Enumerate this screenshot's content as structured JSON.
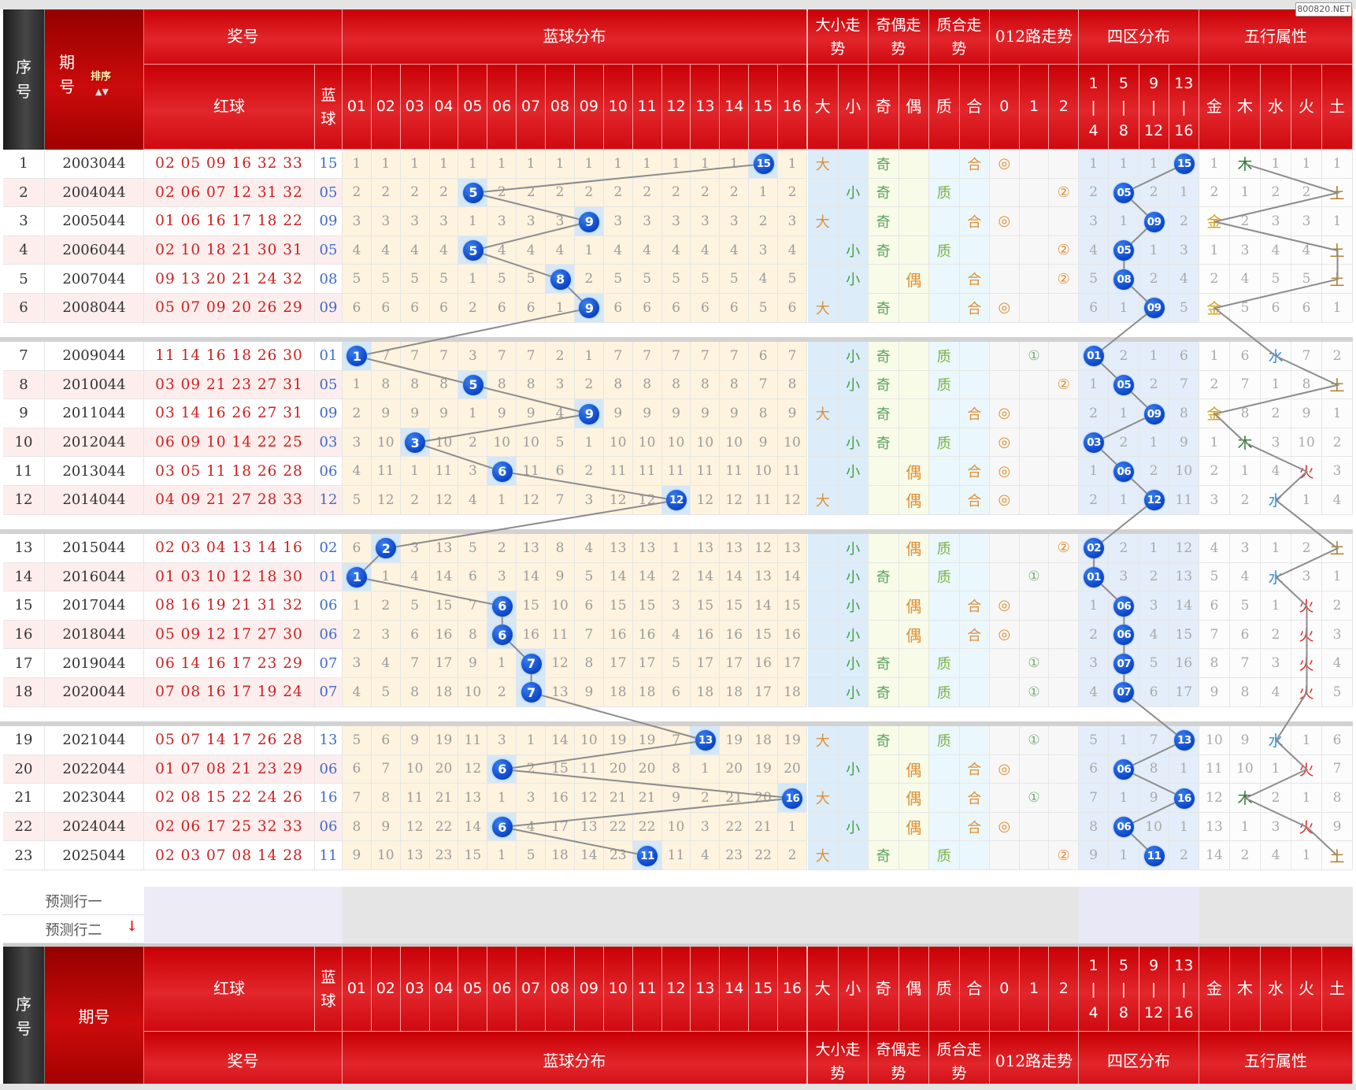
{
  "watermark": "800820.NET",
  "headers": {
    "seq": "序号",
    "period": "期号",
    "sort": "排序",
    "prize": "奖号",
    "red": "红球",
    "blue": "蓝球",
    "blue_dist": "蓝球分布",
    "big_small": "大小走势",
    "odd_even": "奇偶走势",
    "prime": "质合走势",
    "route": "012路走势",
    "zone": "四区分布",
    "wuxing": "五行属性",
    "blue_nums": [
      "01",
      "02",
      "03",
      "04",
      "05",
      "06",
      "07",
      "08",
      "09",
      "10",
      "11",
      "12",
      "13",
      "14",
      "15",
      "16"
    ],
    "bs_cols": [
      "大",
      "小"
    ],
    "oe_cols": [
      "奇",
      "偶"
    ],
    "pc_cols": [
      "质",
      "合"
    ],
    "route_cols": [
      "0",
      "1",
      "2"
    ],
    "zone_cols": [
      "1 | 4",
      "5 | 8",
      "9 | 12",
      "13 | 16"
    ],
    "wx_cols": [
      "金",
      "木",
      "水",
      "火",
      "土"
    ]
  },
  "rows": [
    {
      "seq": "1",
      "period": "2003044",
      "red": "02 05 09 16 32 33",
      "blue": "15",
      "miss": [
        "1",
        "1",
        "1",
        "1",
        "1",
        "1",
        "1",
        "1",
        "1",
        "1",
        "1",
        "1",
        "1",
        "1",
        "15",
        "1"
      ],
      "bs": [
        "大",
        ""
      ],
      "oe": [
        "奇",
        ""
      ],
      "pc": [
        "",
        "合"
      ],
      "route": [
        "◎",
        "",
        ""
      ],
      "zone": [
        "1",
        "1",
        "1",
        "15"
      ],
      "wx": [
        "1",
        "木",
        "1",
        "1",
        "1"
      ]
    },
    {
      "seq": "2",
      "period": "2004044",
      "red": "02 06 07 12 31 32",
      "blue": "05",
      "miss": [
        "2",
        "2",
        "2",
        "2",
        "5",
        "2",
        "2",
        "2",
        "2",
        "2",
        "2",
        "2",
        "2",
        "2",
        "1",
        "2"
      ],
      "bs": [
        "",
        "小"
      ],
      "oe": [
        "奇",
        ""
      ],
      "pc": [
        "质",
        ""
      ],
      "route": [
        "",
        "",
        "②"
      ],
      "zone": [
        "2",
        "05",
        "2",
        "1"
      ],
      "wx": [
        "2",
        "1",
        "2",
        "2",
        "土"
      ]
    },
    {
      "seq": "3",
      "period": "2005044",
      "red": "01 06 16 17 18 22",
      "blue": "09",
      "miss": [
        "3",
        "3",
        "3",
        "3",
        "1",
        "3",
        "3",
        "3",
        "9",
        "3",
        "3",
        "3",
        "3",
        "3",
        "2",
        "3"
      ],
      "bs": [
        "大",
        ""
      ],
      "oe": [
        "奇",
        ""
      ],
      "pc": [
        "",
        "合"
      ],
      "route": [
        "◎",
        "",
        ""
      ],
      "zone": [
        "3",
        "1",
        "09",
        "2"
      ],
      "wx": [
        "金",
        "2",
        "3",
        "3",
        "1"
      ]
    },
    {
      "seq": "4",
      "period": "2006044",
      "red": "02 10 18 21 30 31",
      "blue": "05",
      "miss": [
        "4",
        "4",
        "4",
        "4",
        "5",
        "4",
        "4",
        "4",
        "1",
        "4",
        "4",
        "4",
        "4",
        "4",
        "3",
        "4"
      ],
      "bs": [
        "",
        "小"
      ],
      "oe": [
        "奇",
        ""
      ],
      "pc": [
        "质",
        ""
      ],
      "route": [
        "",
        "",
        "②"
      ],
      "zone": [
        "4",
        "05",
        "1",
        "3"
      ],
      "wx": [
        "1",
        "3",
        "4",
        "4",
        "土"
      ]
    },
    {
      "seq": "5",
      "period": "2007044",
      "red": "09 13 20 21 24 32",
      "blue": "08",
      "miss": [
        "5",
        "5",
        "5",
        "5",
        "1",
        "5",
        "5",
        "8",
        "2",
        "5",
        "5",
        "5",
        "5",
        "5",
        "4",
        "5"
      ],
      "bs": [
        "",
        "小"
      ],
      "oe": [
        "",
        "偶"
      ],
      "pc": [
        "",
        "合"
      ],
      "route": [
        "",
        "",
        "②"
      ],
      "zone": [
        "5",
        "08",
        "2",
        "4"
      ],
      "wx": [
        "2",
        "4",
        "5",
        "5",
        "土"
      ]
    },
    {
      "seq": "6",
      "period": "2008044",
      "red": "05 07 09 20 26 29",
      "blue": "09",
      "miss": [
        "6",
        "6",
        "6",
        "6",
        "2",
        "6",
        "6",
        "1",
        "9",
        "6",
        "6",
        "6",
        "6",
        "6",
        "5",
        "6"
      ],
      "bs": [
        "大",
        ""
      ],
      "oe": [
        "奇",
        ""
      ],
      "pc": [
        "",
        "合"
      ],
      "route": [
        "◎",
        "",
        ""
      ],
      "zone": [
        "6",
        "1",
        "09",
        "5"
      ],
      "wx": [
        "金",
        "5",
        "6",
        "6",
        "1"
      ]
    },
    {
      "seq": "7",
      "period": "2009044",
      "red": "11 14 16 18 26 30",
      "blue": "01",
      "miss": [
        "1",
        "7",
        "7",
        "7",
        "3",
        "7",
        "7",
        "2",
        "1",
        "7",
        "7",
        "7",
        "7",
        "7",
        "6",
        "7"
      ],
      "bs": [
        "",
        "小"
      ],
      "oe": [
        "奇",
        ""
      ],
      "pc": [
        "质",
        ""
      ],
      "route": [
        "",
        "①",
        ""
      ],
      "zone": [
        "01",
        "2",
        "1",
        "6"
      ],
      "wx": [
        "1",
        "6",
        "水",
        "7",
        "2"
      ]
    },
    {
      "seq": "8",
      "period": "2010044",
      "red": "03 09 21 23 27 31",
      "blue": "05",
      "miss": [
        "1",
        "8",
        "8",
        "8",
        "5",
        "8",
        "8",
        "3",
        "2",
        "8",
        "8",
        "8",
        "8",
        "8",
        "7",
        "8"
      ],
      "bs": [
        "",
        "小"
      ],
      "oe": [
        "奇",
        ""
      ],
      "pc": [
        "质",
        ""
      ],
      "route": [
        "",
        "",
        "②"
      ],
      "zone": [
        "1",
        "05",
        "2",
        "7"
      ],
      "wx": [
        "2",
        "7",
        "1",
        "8",
        "土"
      ]
    },
    {
      "seq": "9",
      "period": "2011044",
      "red": "03 14 16 26 27 31",
      "blue": "09",
      "miss": [
        "2",
        "9",
        "9",
        "9",
        "1",
        "9",
        "9",
        "4",
        "9",
        "9",
        "9",
        "9",
        "9",
        "9",
        "8",
        "9"
      ],
      "bs": [
        "大",
        ""
      ],
      "oe": [
        "奇",
        ""
      ],
      "pc": [
        "",
        "合"
      ],
      "route": [
        "◎",
        "",
        ""
      ],
      "zone": [
        "2",
        "1",
        "09",
        "8"
      ],
      "wx": [
        "金",
        "8",
        "2",
        "9",
        "1"
      ]
    },
    {
      "seq": "10",
      "period": "2012044",
      "red": "06 09 10 14 22 25",
      "blue": "03",
      "miss": [
        "3",
        "10",
        "3",
        "10",
        "2",
        "10",
        "10",
        "5",
        "1",
        "10",
        "10",
        "10",
        "10",
        "10",
        "9",
        "10"
      ],
      "bs": [
        "",
        "小"
      ],
      "oe": [
        "奇",
        ""
      ],
      "pc": [
        "质",
        ""
      ],
      "route": [
        "◎",
        "",
        ""
      ],
      "zone": [
        "03",
        "2",
        "1",
        "9"
      ],
      "wx": [
        "1",
        "木",
        "3",
        "10",
        "2"
      ]
    },
    {
      "seq": "11",
      "period": "2013044",
      "red": "03 05 11 18 26 28",
      "blue": "06",
      "miss": [
        "4",
        "11",
        "1",
        "11",
        "3",
        "6",
        "11",
        "6",
        "2",
        "11",
        "11",
        "11",
        "11",
        "11",
        "10",
        "11"
      ],
      "bs": [
        "",
        "小"
      ],
      "oe": [
        "",
        "偶"
      ],
      "pc": [
        "",
        "合"
      ],
      "route": [
        "◎",
        "",
        ""
      ],
      "zone": [
        "1",
        "06",
        "2",
        "10"
      ],
      "wx": [
        "2",
        "1",
        "4",
        "火",
        "3"
      ]
    },
    {
      "seq": "12",
      "period": "2014044",
      "red": "04 09 21 27 28 33",
      "blue": "12",
      "miss": [
        "5",
        "12",
        "2",
        "12",
        "4",
        "1",
        "12",
        "7",
        "3",
        "12",
        "12",
        "12",
        "12",
        "12",
        "11",
        "12"
      ],
      "bs": [
        "大",
        ""
      ],
      "oe": [
        "",
        "偶"
      ],
      "pc": [
        "",
        "合"
      ],
      "route": [
        "◎",
        "",
        ""
      ],
      "zone": [
        "2",
        "1",
        "12",
        "11"
      ],
      "wx": [
        "3",
        "2",
        "水",
        "1",
        "4"
      ]
    },
    {
      "seq": "13",
      "period": "2015044",
      "red": "02 03 04 13 14 16",
      "blue": "02",
      "miss": [
        "6",
        "2",
        "3",
        "13",
        "5",
        "2",
        "13",
        "8",
        "4",
        "13",
        "13",
        "1",
        "13",
        "13",
        "12",
        "13"
      ],
      "bs": [
        "",
        "小"
      ],
      "oe": [
        "",
        "偶"
      ],
      "pc": [
        "质",
        ""
      ],
      "route": [
        "",
        "",
        "②"
      ],
      "zone": [
        "02",
        "2",
        "1",
        "12"
      ],
      "wx": [
        "4",
        "3",
        "1",
        "2",
        "土"
      ]
    },
    {
      "seq": "14",
      "period": "2016044",
      "red": "01 03 10 12 18 30",
      "blue": "01",
      "miss": [
        "1",
        "1",
        "4",
        "14",
        "6",
        "3",
        "14",
        "9",
        "5",
        "14",
        "14",
        "2",
        "14",
        "14",
        "13",
        "14"
      ],
      "bs": [
        "",
        "小"
      ],
      "oe": [
        "奇",
        ""
      ],
      "pc": [
        "质",
        ""
      ],
      "route": [
        "",
        "①",
        ""
      ],
      "zone": [
        "01",
        "3",
        "2",
        "13"
      ],
      "wx": [
        "5",
        "4",
        "水",
        "3",
        "1"
      ]
    },
    {
      "seq": "15",
      "period": "2017044",
      "red": "08 16 19 21 31 32",
      "blue": "06",
      "miss": [
        "1",
        "2",
        "5",
        "15",
        "7",
        "6",
        "15",
        "10",
        "6",
        "15",
        "15",
        "3",
        "15",
        "15",
        "14",
        "15"
      ],
      "bs": [
        "",
        "小"
      ],
      "oe": [
        "",
        "偶"
      ],
      "pc": [
        "",
        "合"
      ],
      "route": [
        "◎",
        "",
        ""
      ],
      "zone": [
        "1",
        "06",
        "3",
        "14"
      ],
      "wx": [
        "6",
        "5",
        "1",
        "火",
        "2"
      ]
    },
    {
      "seq": "16",
      "period": "2018044",
      "red": "05 09 12 17 27 30",
      "blue": "06",
      "miss": [
        "2",
        "3",
        "6",
        "16",
        "8",
        "6",
        "16",
        "11",
        "7",
        "16",
        "16",
        "4",
        "16",
        "16",
        "15",
        "16"
      ],
      "bs": [
        "",
        "小"
      ],
      "oe": [
        "",
        "偶"
      ],
      "pc": [
        "",
        "合"
      ],
      "route": [
        "◎",
        "",
        ""
      ],
      "zone": [
        "2",
        "06",
        "4",
        "15"
      ],
      "wx": [
        "7",
        "6",
        "2",
        "火",
        "3"
      ]
    },
    {
      "seq": "17",
      "period": "2019044",
      "red": "06 14 16 17 23 29",
      "blue": "07",
      "miss": [
        "3",
        "4",
        "7",
        "17",
        "9",
        "1",
        "7",
        "12",
        "8",
        "17",
        "17",
        "5",
        "17",
        "17",
        "16",
        "17"
      ],
      "bs": [
        "",
        "小"
      ],
      "oe": [
        "奇",
        ""
      ],
      "pc": [
        "质",
        ""
      ],
      "route": [
        "",
        "①",
        ""
      ],
      "zone": [
        "3",
        "07",
        "5",
        "16"
      ],
      "wx": [
        "8",
        "7",
        "3",
        "火",
        "4"
      ]
    },
    {
      "seq": "18",
      "period": "2020044",
      "red": "07 08 16 17 19 24",
      "blue": "07",
      "miss": [
        "4",
        "5",
        "8",
        "18",
        "10",
        "2",
        "7",
        "13",
        "9",
        "18",
        "18",
        "6",
        "18",
        "18",
        "17",
        "18"
      ],
      "bs": [
        "",
        "小"
      ],
      "oe": [
        "奇",
        ""
      ],
      "pc": [
        "质",
        ""
      ],
      "route": [
        "",
        "①",
        ""
      ],
      "zone": [
        "4",
        "07",
        "6",
        "17"
      ],
      "wx": [
        "9",
        "8",
        "4",
        "火",
        "5"
      ]
    },
    {
      "seq": "19",
      "period": "2021044",
      "red": "05 07 14 17 26 28",
      "blue": "13",
      "miss": [
        "5",
        "6",
        "9",
        "19",
        "11",
        "3",
        "1",
        "14",
        "10",
        "19",
        "19",
        "7",
        "13",
        "19",
        "18",
        "19"
      ],
      "bs": [
        "大",
        ""
      ],
      "oe": [
        "奇",
        ""
      ],
      "pc": [
        "质",
        ""
      ],
      "route": [
        "",
        "①",
        ""
      ],
      "zone": [
        "5",
        "1",
        "7",
        "13"
      ],
      "wx": [
        "10",
        "9",
        "水",
        "1",
        "6"
      ]
    },
    {
      "seq": "20",
      "period": "2022044",
      "red": "01 07 08 21 23 29",
      "blue": "06",
      "miss": [
        "6",
        "7",
        "10",
        "20",
        "12",
        "6",
        "2",
        "15",
        "11",
        "20",
        "20",
        "8",
        "1",
        "20",
        "19",
        "20"
      ],
      "bs": [
        "",
        "小"
      ],
      "oe": [
        "",
        "偶"
      ],
      "pc": [
        "",
        "合"
      ],
      "route": [
        "◎",
        "",
        ""
      ],
      "zone": [
        "6",
        "06",
        "8",
        "1"
      ],
      "wx": [
        "11",
        "10",
        "1",
        "火",
        "7"
      ]
    },
    {
      "seq": "21",
      "period": "2023044",
      "red": "02 08 15 22 24 26",
      "blue": "16",
      "miss": [
        "7",
        "8",
        "11",
        "21",
        "13",
        "1",
        "3",
        "16",
        "12",
        "21",
        "21",
        "9",
        "2",
        "21",
        "20",
        "16"
      ],
      "bs": [
        "大",
        ""
      ],
      "oe": [
        "",
        "偶"
      ],
      "pc": [
        "",
        "合"
      ],
      "route": [
        "",
        "①",
        ""
      ],
      "zone": [
        "7",
        "1",
        "9",
        "16"
      ],
      "wx": [
        "12",
        "木",
        "2",
        "1",
        "8"
      ]
    },
    {
      "seq": "22",
      "period": "2024044",
      "red": "02 06 17 25 32 33",
      "blue": "06",
      "miss": [
        "8",
        "9",
        "12",
        "22",
        "14",
        "6",
        "4",
        "17",
        "13",
        "22",
        "22",
        "10",
        "3",
        "22",
        "21",
        "1"
      ],
      "bs": [
        "",
        "小"
      ],
      "oe": [
        "",
        "偶"
      ],
      "pc": [
        "",
        "合"
      ],
      "route": [
        "◎",
        "",
        ""
      ],
      "zone": [
        "8",
        "06",
        "10",
        "1"
      ],
      "wx": [
        "13",
        "1",
        "3",
        "火",
        "9"
      ]
    },
    {
      "seq": "23",
      "period": "2025044",
      "red": "02 03 07 08 14 28",
      "blue": "11",
      "miss": [
        "9",
        "10",
        "13",
        "23",
        "15",
        "1",
        "5",
        "18",
        "14",
        "23",
        "11",
        "11",
        "4",
        "23",
        "22",
        "2"
      ],
      "bs": [
        "大",
        ""
      ],
      "oe": [
        "奇",
        ""
      ],
      "pc": [
        "质",
        ""
      ],
      "route": [
        "",
        "",
        "②"
      ],
      "zone": [
        "9",
        "1",
        "11",
        "2"
      ],
      "wx": [
        "14",
        "2",
        "4",
        "1",
        "土"
      ]
    }
  ],
  "predict": [
    "预测行一",
    "预测行二"
  ]
}
